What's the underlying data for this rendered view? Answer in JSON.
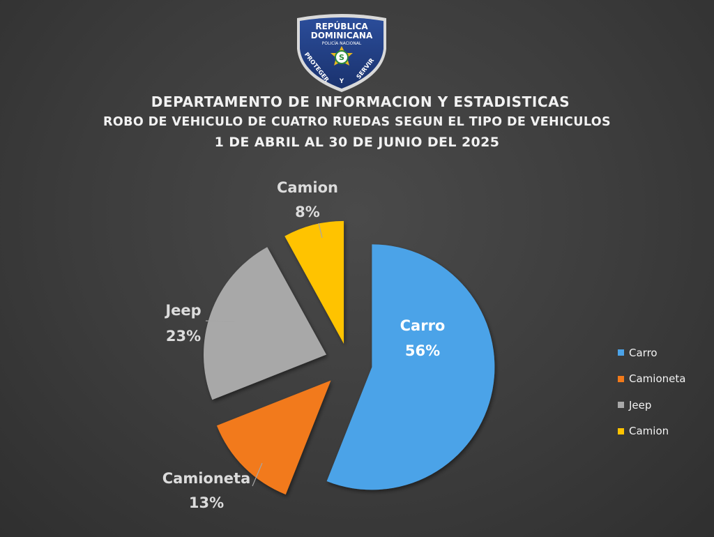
{
  "logo": {
    "top_text": "REPÚBLICA DOMINICANA",
    "line1": "REPÚBLICA",
    "line2": "DOMINICANA",
    "sub": "POLICÍA NACIONAL",
    "left_motto": "PROTEGER",
    "mid_motto": "Y",
    "right_motto": "SERVIR"
  },
  "titles": {
    "line1": "DEPARTAMENTO DE INFORMACION Y ESTADISTICAS",
    "line2": "ROBO DE VEHICULO DE CUATRO RUEDAS SEGUN EL TIPO DE VEHICULOS",
    "line3": "1 DE ABRIL AL 30 DE JUNIO DEL 2025"
  },
  "colors": {
    "carro": "#4ba3e8",
    "camioneta": "#f27a1a",
    "jeep": "#a8a8a8",
    "camion": "#ffc300"
  },
  "chart_data": {
    "type": "pie",
    "title": "DEPARTAMENTO DE INFORMACION Y ESTADISTICAS",
    "subtitle": "ROBO DE VEHICULO DE CUATRO RUEDAS SEGUN EL TIPO DE VEHICULOS",
    "period": "1 DE ABRIL AL 30 DE JUNIO DEL 2025",
    "legend_position": "right",
    "slices": [
      {
        "label": "Carro",
        "value": 56,
        "display": "56%",
        "color": "#4ba3e8"
      },
      {
        "label": "Camioneta",
        "value": 13,
        "display": "13%",
        "color": "#f27a1a"
      },
      {
        "label": "Jeep",
        "value": 23,
        "display": "23%",
        "color": "#a8a8a8"
      },
      {
        "label": "Camion",
        "value": 8,
        "display": "8%",
        "color": "#ffc300"
      }
    ]
  }
}
